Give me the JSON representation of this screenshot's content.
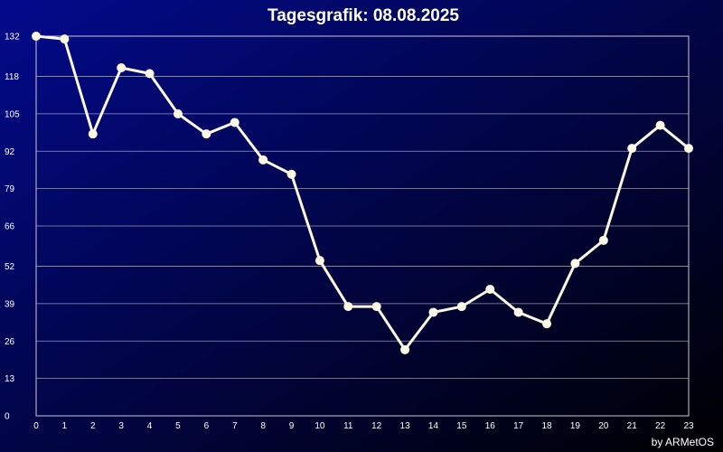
{
  "colors": {
    "background_start": "#020a8c",
    "background_end": "#000000",
    "line": "#fdf8e6",
    "grid": "#c9c9d6",
    "text": "#ffffff"
  },
  "chart_data": {
    "type": "line",
    "title": "Tagesgrafik: 08.08.2025",
    "credit": "by ARMetOS",
    "xlabel": "",
    "ylabel": "",
    "grid": true,
    "legend": "none",
    "x": [
      0,
      1,
      2,
      3,
      4,
      5,
      6,
      7,
      8,
      9,
      10,
      11,
      12,
      13,
      14,
      15,
      16,
      17,
      18,
      19,
      20,
      21,
      22,
      23
    ],
    "series": [
      {
        "values": [
          132,
          131,
          98,
          121,
          119,
          105,
          98,
          102,
          89,
          84,
          54,
          38,
          38,
          23,
          36,
          38,
          44,
          36,
          32,
          53,
          61,
          93,
          101,
          93
        ]
      }
    ],
    "xlim": [
      0,
      23
    ],
    "ylim": [
      0,
      132
    ],
    "y_ticks": [
      0,
      13,
      26,
      39,
      52,
      66,
      79,
      92,
      105,
      118,
      132
    ],
    "x_ticks": [
      "0",
      "1",
      "2",
      "3",
      "4",
      "5",
      "6",
      "7",
      "8",
      "9",
      "10",
      "11",
      "12",
      "13",
      "14",
      "15",
      "16",
      "17",
      "18",
      "19",
      "20",
      "21",
      "22",
      "23"
    ]
  }
}
